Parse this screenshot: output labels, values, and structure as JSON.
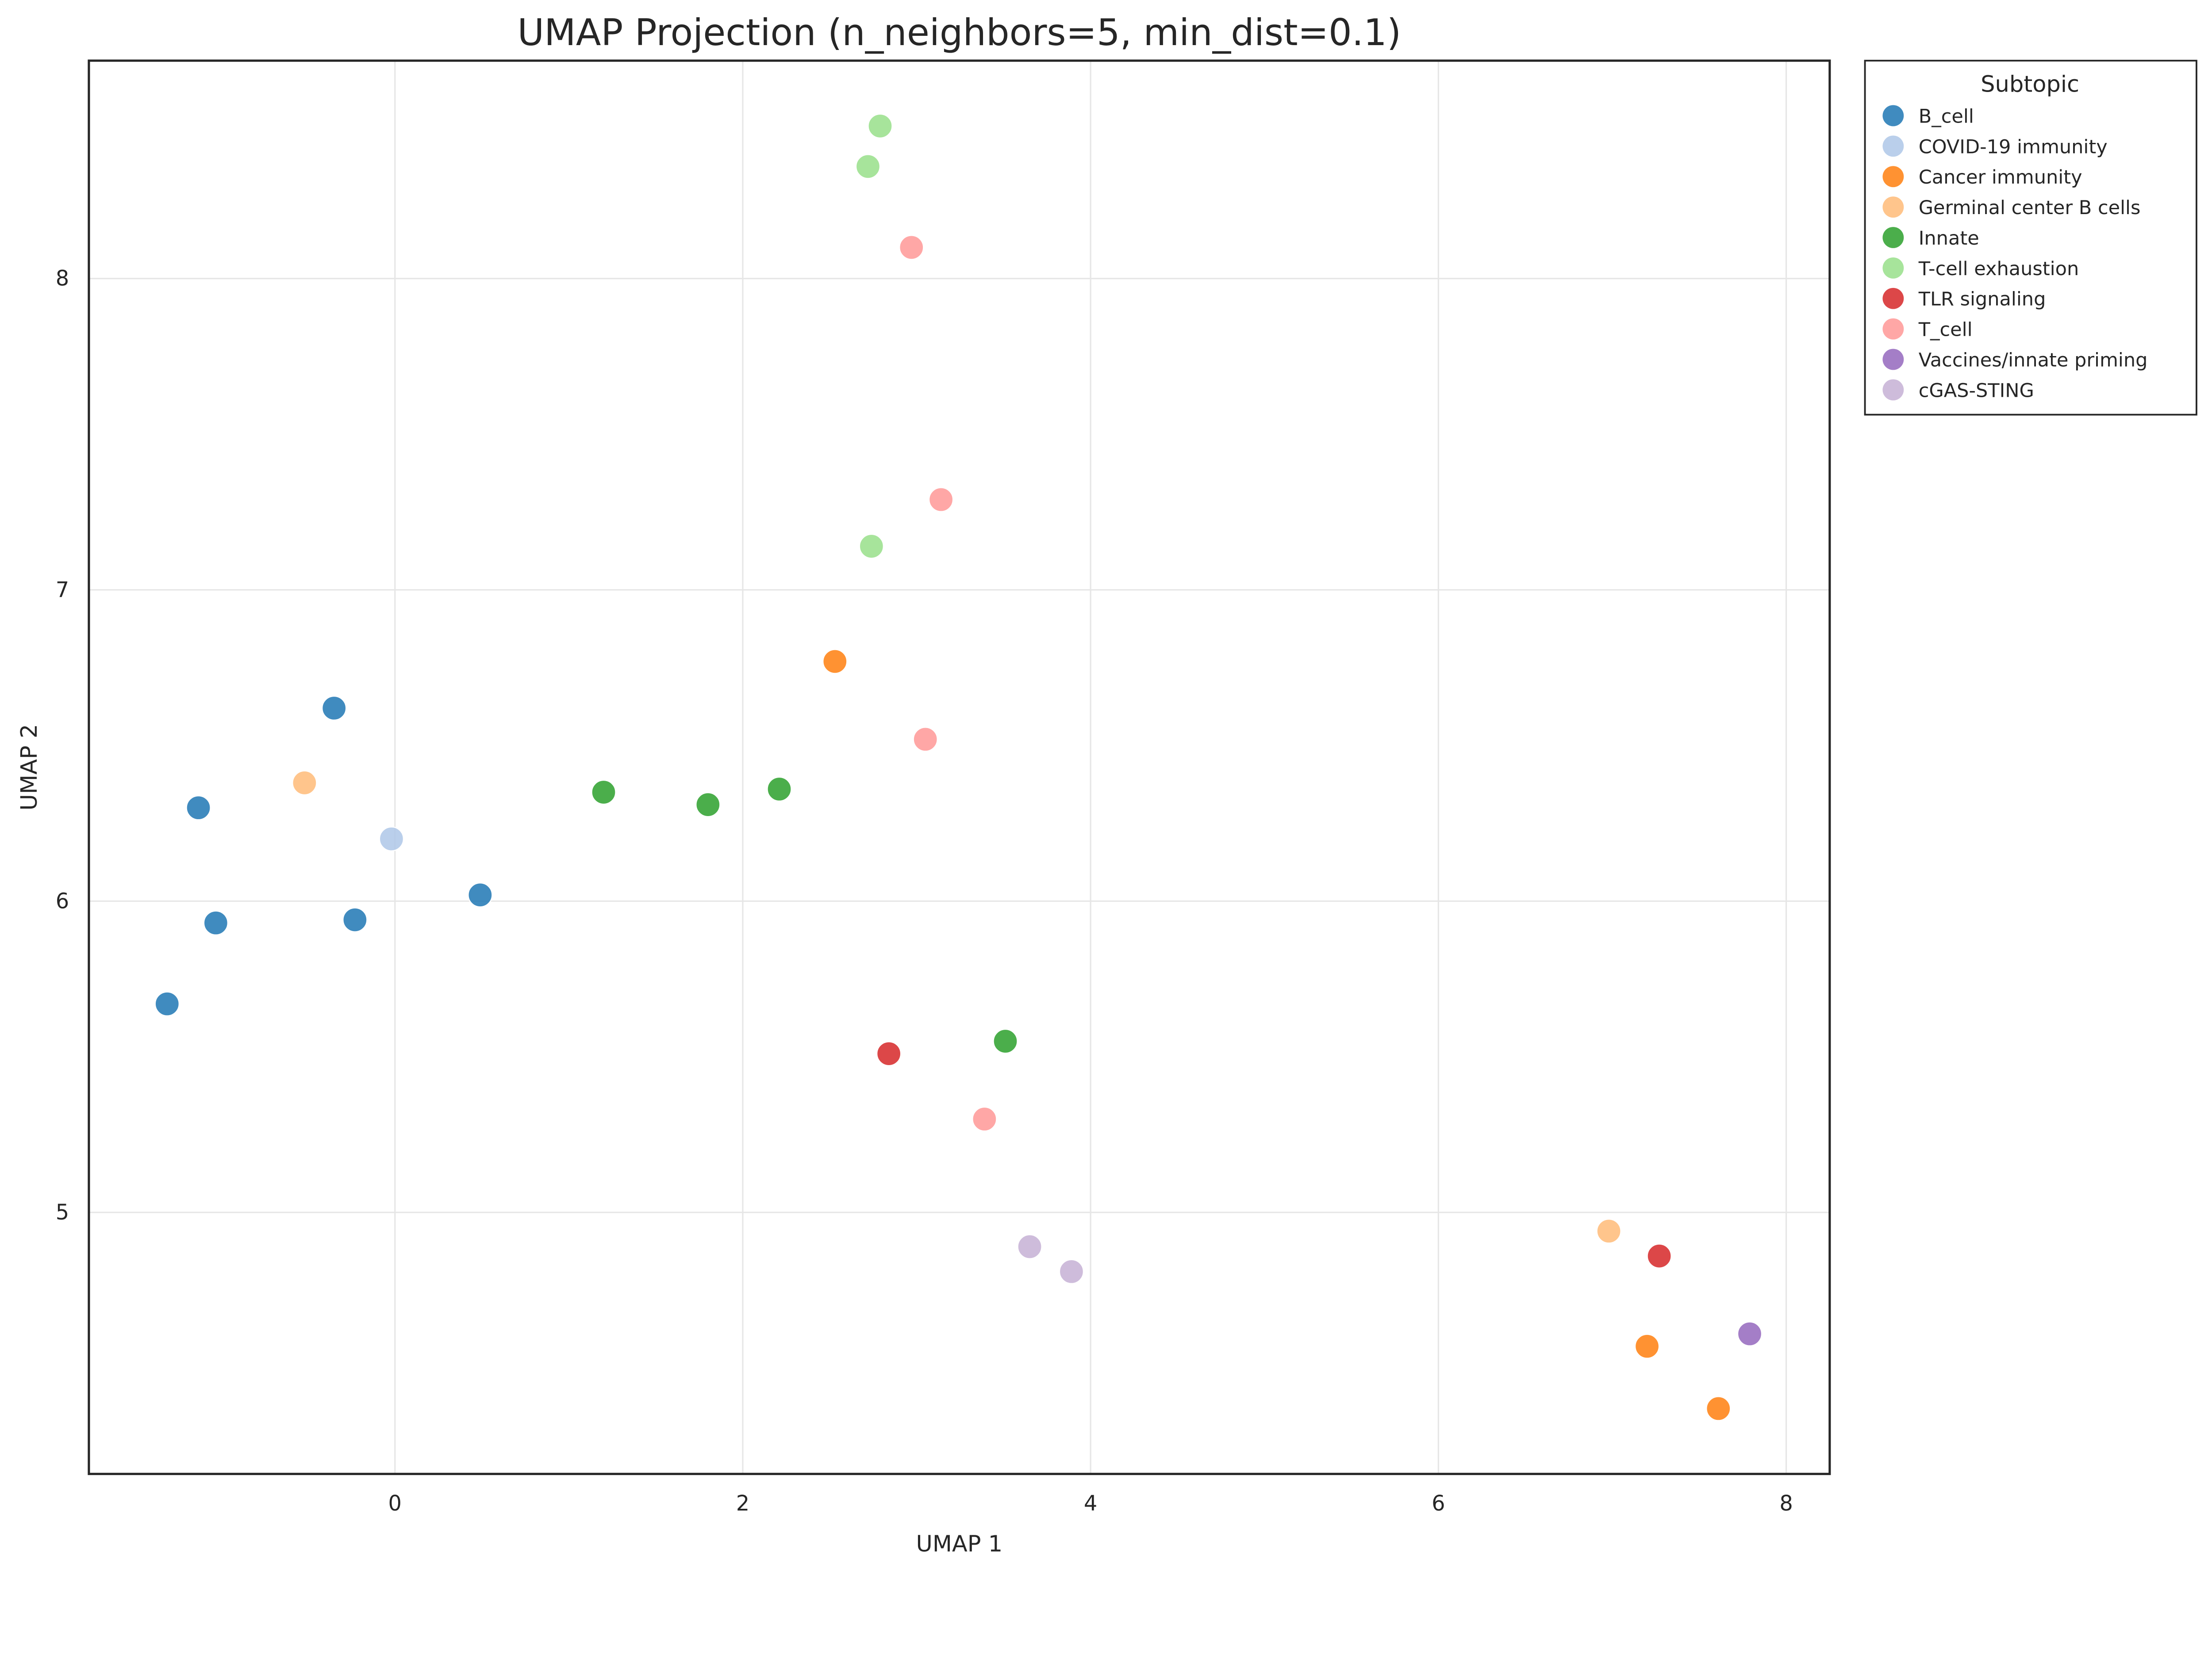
{
  "chart_data": {
    "type": "scatter",
    "title": "UMAP Projection (n_neighbors=5, min_dist=0.1)",
    "xlabel": "UMAP 1",
    "ylabel": "UMAP 2",
    "xlim": [
      -1.76,
      8.25
    ],
    "ylim": [
      4.16,
      8.7
    ],
    "xticks": [
      0,
      2,
      4,
      6,
      8
    ],
    "yticks": [
      5,
      6,
      7,
      8
    ],
    "grid": true,
    "legend": {
      "title": "Subtopic",
      "placement": "outside-top-right"
    },
    "series": [
      {
        "name": "B_cell",
        "color": "#1f77b4",
        "points": [
          [
            -1.13,
            6.3
          ],
          [
            -0.35,
            6.62
          ],
          [
            -1.03,
            5.93
          ],
          [
            -0.23,
            5.94
          ],
          [
            0.49,
            6.02
          ],
          [
            -1.31,
            5.67
          ]
        ]
      },
      {
        "name": "COVID-19 immunity",
        "color": "#aec7e8",
        "points": [
          [
            -0.02,
            6.2
          ]
        ]
      },
      {
        "name": "Cancer immunity",
        "color": "#ff7f0e",
        "points": [
          [
            2.53,
            6.77
          ],
          [
            7.2,
            4.57
          ],
          [
            7.61,
            4.37
          ]
        ]
      },
      {
        "name": "Germinal center B cells",
        "color": "#ffbb78",
        "points": [
          [
            -0.52,
            6.38
          ],
          [
            6.98,
            4.94
          ]
        ]
      },
      {
        "name": "Innate",
        "color": "#2ca02c",
        "points": [
          [
            1.2,
            6.35
          ],
          [
            1.8,
            6.31
          ],
          [
            2.21,
            6.36
          ],
          [
            3.51,
            5.55
          ]
        ]
      },
      {
        "name": "T-cell exhaustion",
        "color": "#98df8a",
        "points": [
          [
            2.79,
            8.49
          ],
          [
            2.72,
            8.36
          ],
          [
            2.74,
            7.14
          ]
        ]
      },
      {
        "name": "TLR signaling",
        "color": "#d62728",
        "points": [
          [
            2.84,
            5.51
          ],
          [
            7.27,
            4.86
          ]
        ]
      },
      {
        "name": "T_cell",
        "color": "#ff9896",
        "points": [
          [
            2.97,
            8.1
          ],
          [
            3.14,
            7.29
          ],
          [
            3.05,
            6.52
          ],
          [
            3.39,
            5.3
          ]
        ]
      },
      {
        "name": "Vaccines/innate priming",
        "color": "#9467bd",
        "points": [
          [
            7.79,
            4.61
          ]
        ]
      },
      {
        "name": "cGAS-STING",
        "color": "#c5b0d5",
        "points": [
          [
            3.65,
            4.89
          ],
          [
            3.89,
            4.81
          ]
        ]
      }
    ]
  }
}
